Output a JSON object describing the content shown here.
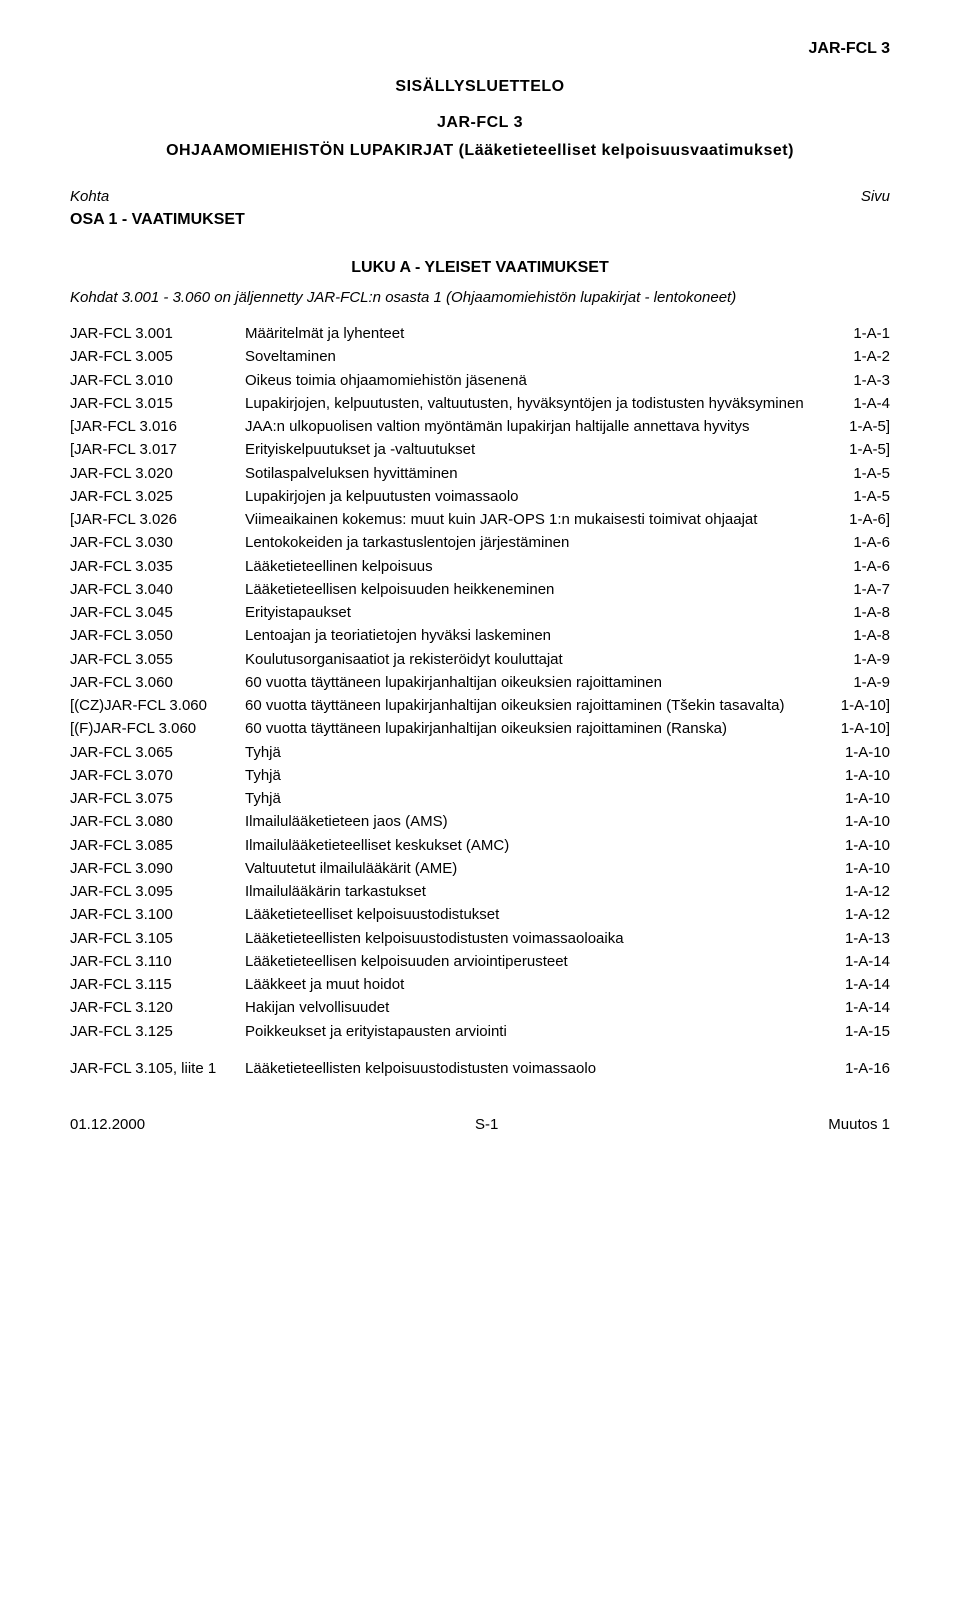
{
  "top_right": "JAR-FCL 3",
  "main_title": "SISÄLLYSLUETTELO",
  "doc_title": "JAR-FCL 3",
  "doc_subtitle": "OHJAAMOMIEHISTÖN LUPAKIRJAT (Lääketieteelliset kelpoisuusvaatimukset)",
  "kohta": "Kohta",
  "sivu": "Sivu",
  "subhead": "OSA 1 - VAATIMUKSET",
  "section_title": "LUKU A - YLEISET VAATIMUKSET",
  "intro_line": "Kohdat 3.001 - 3.060 on jäljennetty JAR-FCL:n osasta 1 (Ohjaamomiehistön lupakirjat - lentokoneet)",
  "rows": [
    {
      "label": "JAR-FCL 3.001",
      "desc": "Määritelmät ja lyhenteet",
      "page": "1-A-1"
    },
    {
      "label": "JAR-FCL 3.005",
      "desc": "Soveltaminen",
      "page": "1-A-2"
    },
    {
      "label": "JAR-FCL 3.010",
      "desc": "Oikeus toimia ohjaamomiehistön jäsenenä",
      "page": "1-A-3"
    },
    {
      "label": "JAR-FCL 3.015",
      "desc": "Lupakirjojen, kelpuutusten, valtuutusten, hyväksyntöjen ja todistusten hyväksyminen",
      "page": "1-A-4"
    },
    {
      "label": "[JAR-FCL 3.016",
      "desc": "JAA:n ulkopuolisen valtion myöntämän lupakirjan haltijalle annettava hyvitys",
      "page": "1-A-5]"
    },
    {
      "label": "[JAR-FCL 3.017",
      "desc": "Erityiskelpuutukset ja -valtuutukset",
      "page": "1-A-5]"
    },
    {
      "label": "JAR-FCL 3.020",
      "desc": "Sotilaspalveluksen hyvittäminen",
      "page": "1-A-5"
    },
    {
      "label": "JAR-FCL 3.025",
      "desc": "Lupakirjojen ja kelpuutusten voimassaolo",
      "page": "1-A-5"
    },
    {
      "label": "[JAR-FCL 3.026",
      "desc": "Viimeaikainen kokemus: muut kuin JAR-OPS 1:n mukaisesti toimivat ohjaajat",
      "page": "1-A-6]"
    },
    {
      "label": "JAR-FCL 3.030",
      "desc": "Lentokokeiden ja tarkastuslentojen järjestäminen",
      "page": "1-A-6"
    },
    {
      "label": "JAR-FCL 3.035",
      "desc": "Lääketieteellinen kelpoisuus",
      "page": "1-A-6"
    },
    {
      "label": "JAR-FCL 3.040",
      "desc": "Lääketieteellisen kelpoisuuden heikkeneminen",
      "page": "1-A-7"
    },
    {
      "label": "JAR-FCL 3.045",
      "desc": "Erityistapaukset",
      "page": "1-A-8"
    },
    {
      "label": "JAR-FCL 3.050",
      "desc": "Lentoajan ja teoriatietojen hyväksi laskeminen",
      "page": "1-A-8"
    },
    {
      "label": "JAR-FCL 3.055",
      "desc": "Koulutusorganisaatiot ja rekisteröidyt kouluttajat",
      "page": "1-A-9"
    },
    {
      "label": "JAR-FCL 3.060",
      "desc": "60 vuotta täyttäneen lupakirjanhaltijan oikeuksien rajoittaminen",
      "page": "1-A-9"
    },
    {
      "label": "[(CZ)JAR-FCL 3.060",
      "desc": "60 vuotta täyttäneen lupakirjanhaltijan oikeuksien rajoittaminen (Tšekin tasavalta)",
      "page": "1-A-10]"
    },
    {
      "label": "[(F)JAR-FCL 3.060",
      "desc": "60 vuotta täyttäneen lupakirjanhaltijan oikeuksien rajoittaminen (Ranska)",
      "page": "1-A-10]"
    },
    {
      "label": "JAR-FCL 3.065",
      "desc": "Tyhjä",
      "page": "1-A-10"
    },
    {
      "label": "JAR-FCL 3.070",
      "desc": "Tyhjä",
      "page": "1-A-10"
    },
    {
      "label": "JAR-FCL 3.075",
      "desc": "Tyhjä",
      "page": "1-A-10"
    },
    {
      "label": "JAR-FCL 3.080",
      "desc": "Ilmailulääketieteen jaos (AMS)",
      "page": "1-A-10"
    },
    {
      "label": "JAR-FCL 3.085",
      "desc": "Ilmailulääketieteelliset keskukset (AMC)",
      "page": "1-A-10"
    },
    {
      "label": "JAR-FCL 3.090",
      "desc": "Valtuutetut ilmailulääkärit (AME)",
      "page": "1-A-10"
    },
    {
      "label": "JAR-FCL 3.095",
      "desc": "Ilmailulääkärin tarkastukset",
      "page": "1-A-12"
    },
    {
      "label": "JAR-FCL 3.100",
      "desc": "Lääketieteelliset kelpoisuustodistukset",
      "page": "1-A-12"
    },
    {
      "label": "JAR-FCL 3.105",
      "desc": "Lääketieteellisten kelpoisuustodistusten voimassaoloaika",
      "page": "1-A-13"
    },
    {
      "label": "JAR-FCL 3.110",
      "desc": "Lääketieteellisen kelpoisuuden arviointiperusteet",
      "page": "1-A-14"
    },
    {
      "label": "JAR-FCL 3.115",
      "desc": "Lääkkeet ja muut hoidot",
      "page": "1-A-14"
    },
    {
      "label": "JAR-FCL 3.120",
      "desc": "Hakijan velvollisuudet",
      "page": "1-A-14"
    },
    {
      "label": "JAR-FCL 3.125",
      "desc": "Poikkeukset ja erityistapausten arviointi",
      "page": "1-A-15"
    }
  ],
  "appendix": {
    "label": "JAR-FCL 3.105, liite 1",
    "desc": "Lääketieteellisten kelpoisuustodistusten voimassaolo",
    "page": "1-A-16"
  },
  "footer_left": "01.12.2000",
  "footer_center": "S-1",
  "footer_right": "Muutos 1"
}
